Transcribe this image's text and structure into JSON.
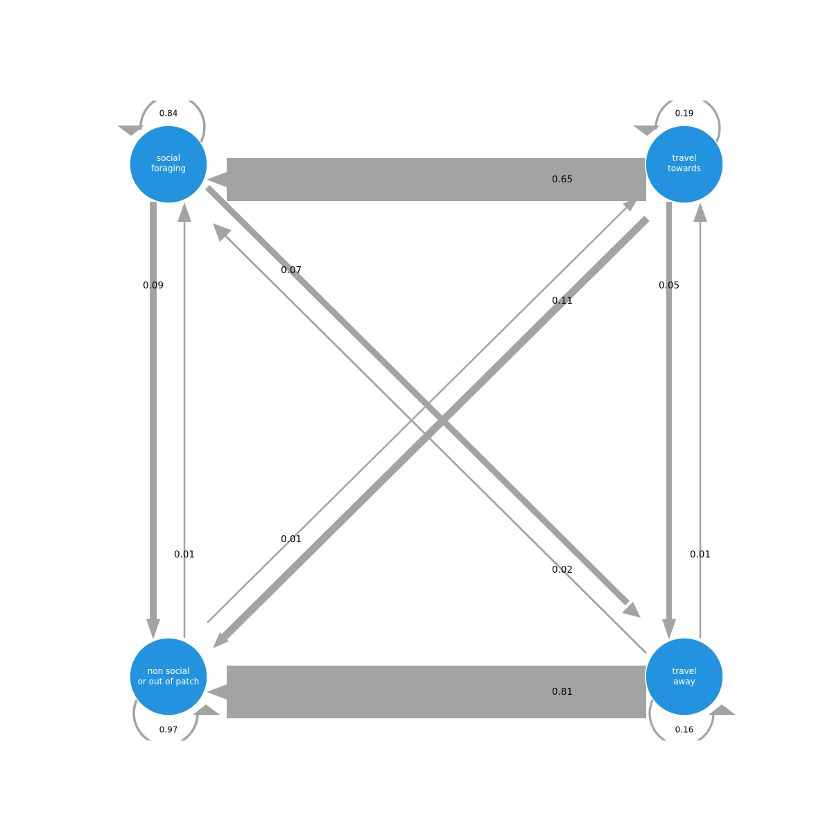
{
  "colors": {
    "node": "#2493df",
    "edge": "#a3a3a3",
    "node_text": "#ffffff",
    "label_text": "#000000"
  },
  "nodes": [
    {
      "id": "social_foraging",
      "label_lines": [
        "social",
        "foraging"
      ],
      "self_loop": "0.84"
    },
    {
      "id": "travel_towards",
      "label_lines": [
        "travel",
        "towards"
      ],
      "self_loop": "0.19"
    },
    {
      "id": "non_social",
      "label_lines": [
        "non social",
        "or out of patch"
      ],
      "self_loop": "0.97"
    },
    {
      "id": "travel_away",
      "label_lines": [
        "travel",
        "away"
      ],
      "self_loop": "0.16"
    }
  ],
  "edges": [
    {
      "from": "travel_towards",
      "to": "social_foraging",
      "label": "0.65"
    },
    {
      "from": "travel_away",
      "to": "non_social",
      "label": "0.81"
    },
    {
      "from": "social_foraging",
      "to": "non_social",
      "label": "0.09"
    },
    {
      "from": "non_social",
      "to": "social_foraging",
      "label": "0.01"
    },
    {
      "from": "travel_towards",
      "to": "travel_away",
      "label": "0.05"
    },
    {
      "from": "travel_away",
      "to": "travel_towards",
      "label": "0.01"
    },
    {
      "from": "social_foraging",
      "to": "travel_away",
      "label": "0.07"
    },
    {
      "from": "travel_away",
      "to": "social_foraging",
      "label": "0.02"
    },
    {
      "from": "travel_towards",
      "to": "non_social",
      "label": "0.11"
    },
    {
      "from": "non_social",
      "to": "travel_towards",
      "label": "0.01"
    }
  ]
}
